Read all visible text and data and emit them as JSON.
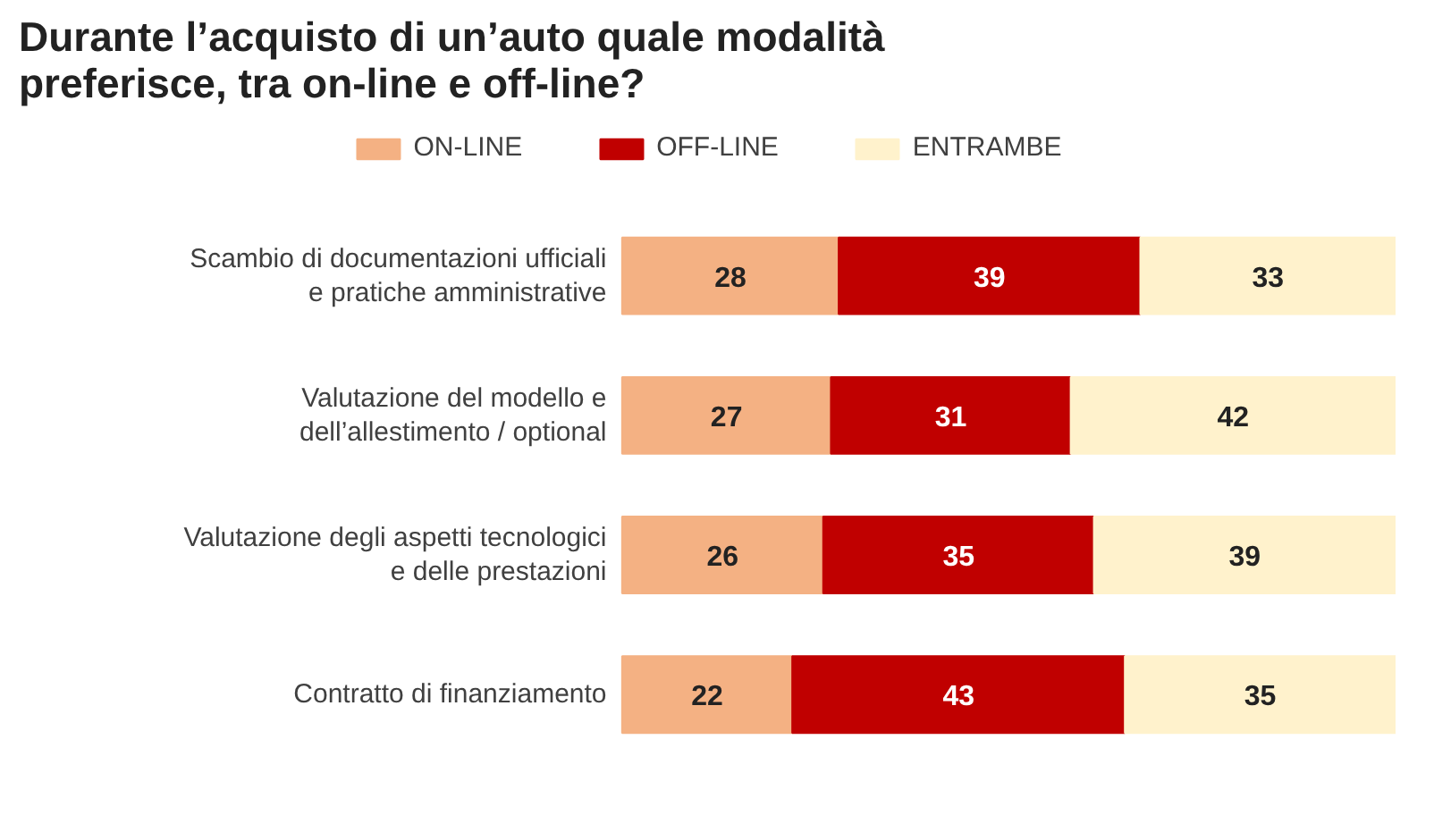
{
  "chart_data": {
    "type": "bar",
    "orientation": "horizontal",
    "stacked": true,
    "data_labels": true,
    "grid": false,
    "legend": "top",
    "title": "Durante l’acquisto di un’auto quale modalità\npreferisce, tra on-line e off-line?",
    "categories": [
      "Scambio di documentazioni ufficiali\ne pratiche amministrative",
      "Valutazione del modello e\ndell’allestimento / optional",
      "Valutazione degli aspetti tecnologici\ne delle prestazioni",
      "Contratto di finanziamento"
    ],
    "series": [
      {
        "name": "ON-LINE",
        "color": "#f4b183",
        "values": [
          28,
          27,
          26,
          22
        ]
      },
      {
        "name": "OFF-LINE",
        "color": "#c00000",
        "values": [
          39,
          31,
          35,
          43
        ]
      },
      {
        "name": "ENTRAMBE",
        "color": "#fff2cc",
        "values": [
          33,
          42,
          39,
          35
        ]
      }
    ]
  }
}
